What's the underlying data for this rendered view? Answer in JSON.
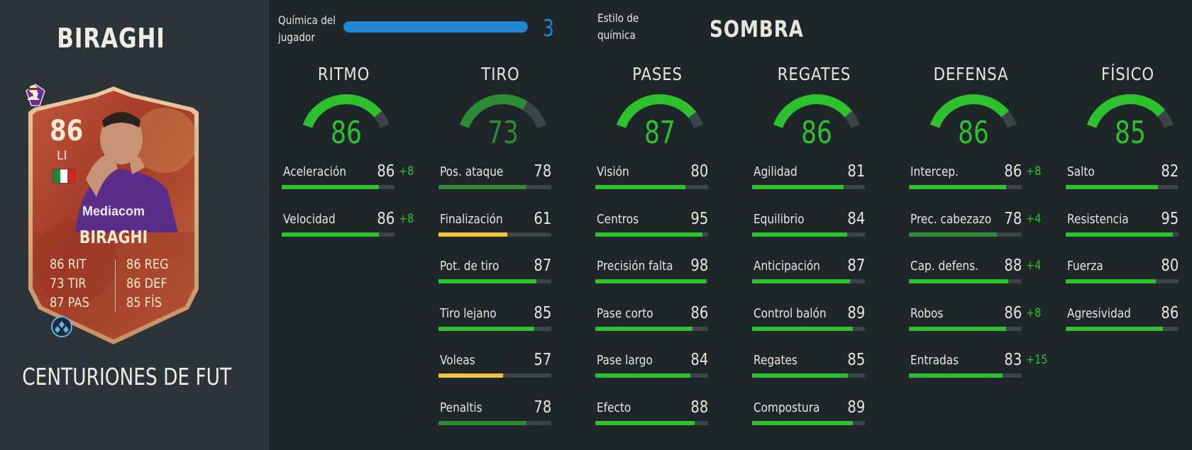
{
  "player": {
    "name": "BIRAGHI",
    "promo": "CENTURIONES DE FUT",
    "card": {
      "rating": "86",
      "position": "LI",
      "name": "BIRAGHI",
      "sponsor": "Mediacom",
      "left_stats": [
        "86 RIT",
        "73 TIR",
        "87 PAS"
      ],
      "right_stats": [
        "86 REG",
        "86 DEF",
        "85 FÍS"
      ],
      "flag_colors": [
        "#1a8c3e",
        "#ffffff",
        "#d6232b"
      ],
      "club_color": "#6a2c91"
    }
  },
  "chemistry": {
    "label": "Química del jugador",
    "value": "3",
    "fraction": 1.0,
    "color": "#1f86d0",
    "style_label": "Estilo de química",
    "style_value": "SOMBRA"
  },
  "categories": [
    {
      "title": "RITMO",
      "value": "86",
      "fraction": 0.86,
      "stats": [
        {
          "name": "Aceleración",
          "value": "86",
          "boost": "+8"
        },
        {
          "name": "Velocidad",
          "value": "86",
          "boost": "+8"
        }
      ]
    },
    {
      "title": "TIRO",
      "value": "73",
      "fraction": 0.73,
      "stats": [
        {
          "name": "Pos. ataque",
          "value": "78",
          "boost": ""
        },
        {
          "name": "Finalización",
          "value": "61",
          "boost": ""
        },
        {
          "name": "Pot. de tiro",
          "value": "87",
          "boost": ""
        },
        {
          "name": "Tiro lejano",
          "value": "85",
          "boost": ""
        },
        {
          "name": "Voleas",
          "value": "57",
          "boost": ""
        },
        {
          "name": "Penaltis",
          "value": "78",
          "boost": ""
        }
      ]
    },
    {
      "title": "PASES",
      "value": "87",
      "fraction": 0.87,
      "stats": [
        {
          "name": "Visión",
          "value": "80",
          "boost": ""
        },
        {
          "name": "Centros",
          "value": "95",
          "boost": ""
        },
        {
          "name": "Precisión falta",
          "value": "98",
          "boost": ""
        },
        {
          "name": "Pase corto",
          "value": "86",
          "boost": ""
        },
        {
          "name": "Pase largo",
          "value": "84",
          "boost": ""
        },
        {
          "name": "Efecto",
          "value": "88",
          "boost": ""
        }
      ]
    },
    {
      "title": "REGATES",
      "value": "86",
      "fraction": 0.86,
      "stats": [
        {
          "name": "Agilidad",
          "value": "81",
          "boost": ""
        },
        {
          "name": "Equilibrio",
          "value": "84",
          "boost": ""
        },
        {
          "name": "Anticipación",
          "value": "87",
          "boost": ""
        },
        {
          "name": "Control balón",
          "value": "89",
          "boost": ""
        },
        {
          "name": "Regates",
          "value": "85",
          "boost": ""
        },
        {
          "name": "Compostura",
          "value": "89",
          "boost": ""
        }
      ]
    },
    {
      "title": "DEFENSA",
      "value": "86",
      "fraction": 0.86,
      "stats": [
        {
          "name": "Intercep.",
          "value": "86",
          "boost": "+8"
        },
        {
          "name": "Prec. cabezazo",
          "value": "78",
          "boost": "+4"
        },
        {
          "name": "Cap. defens.",
          "value": "88",
          "boost": "+4"
        },
        {
          "name": "Robos",
          "value": "86",
          "boost": "+8"
        },
        {
          "name": "Entradas",
          "value": "83",
          "boost": "+15"
        }
      ]
    },
    {
      "title": "FÍSICO",
      "value": "85",
      "fraction": 0.85,
      "stats": [
        {
          "name": "Salto",
          "value": "82",
          "boost": ""
        },
        {
          "name": "Resistencia",
          "value": "95",
          "boost": ""
        },
        {
          "name": "Fuerza",
          "value": "80",
          "boost": ""
        },
        {
          "name": "Agresividad",
          "value": "86",
          "boost": ""
        }
      ]
    }
  ],
  "colors": {
    "high": "#2ec12e",
    "mid": "#2d8a35",
    "low": "#f2c43a",
    "track": "#3a4449"
  }
}
